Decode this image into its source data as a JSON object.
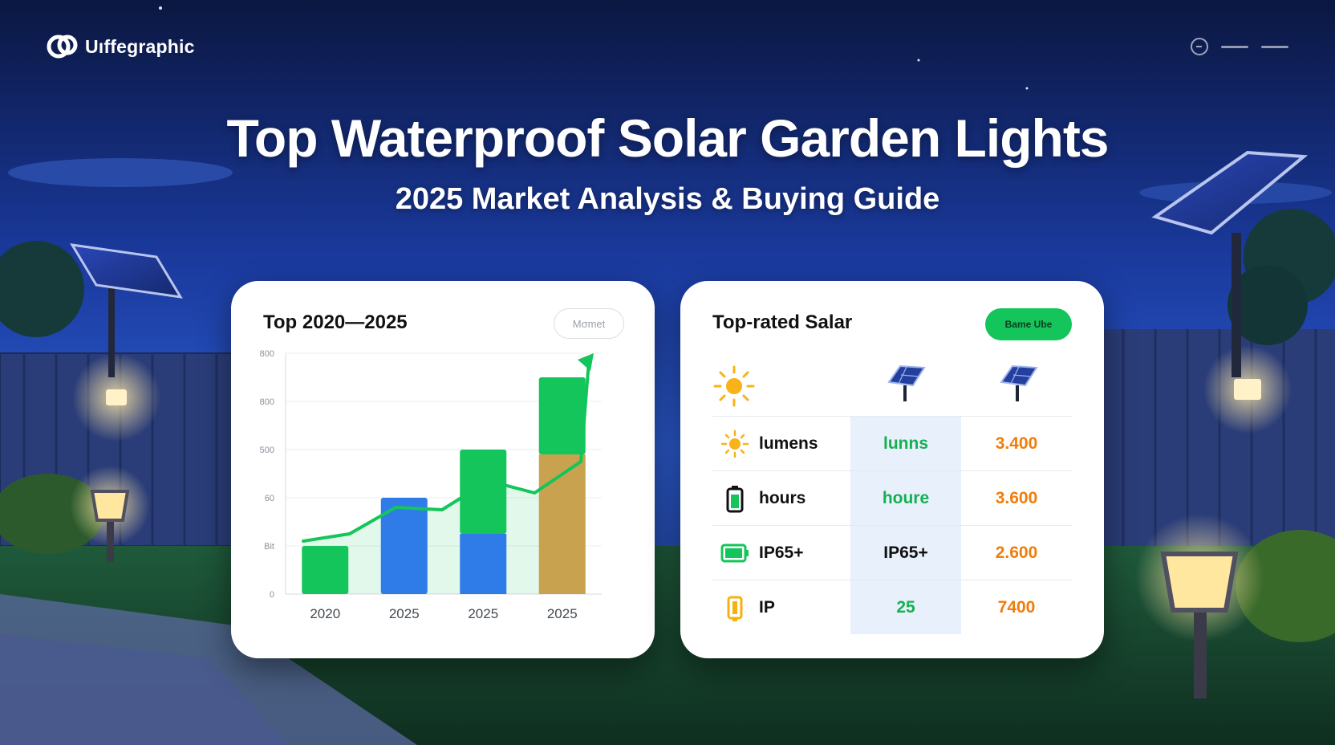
{
  "brand": {
    "name": "Uıffegraphic"
  },
  "hero": {
    "title": "Top Waterproof Solar Garden Lights",
    "subtitle": "2025 Market Analysis & Buying Guide"
  },
  "colors": {
    "green": "#13c55a",
    "blue": "#2f7be8",
    "gold": "#c8a24e",
    "orange": "#f07d0a",
    "night_sky": "#1b3fa8"
  },
  "growth_card": {
    "title": "Top 2020—2025",
    "filter_label": "Mσmet"
  },
  "chart_data": {
    "type": "bar",
    "categories": [
      "2020",
      "2025",
      "2025",
      "2025"
    ],
    "y_tick_labels": [
      "0",
      "Bit",
      "60",
      "500",
      "800",
      "800"
    ],
    "series": [
      {
        "values": [
          2,
          4,
          6,
          9
        ]
      },
      {
        "values": [
          0,
          0,
          2.5,
          5.8
        ]
      }
    ],
    "trend_line": [
      2.2,
      2.5,
      3.6,
      3.5,
      4.7,
      4.2,
      5.5
    ],
    "ylim": [
      0,
      10
    ],
    "grid": true,
    "legend": "none"
  },
  "compare_card": {
    "title": "Top-rated Salar",
    "button_label": "Bame Ube",
    "header_icons": [
      "sun-icon",
      "solar-panel-icon",
      "solar-panel-icon"
    ],
    "rows": [
      {
        "icon": "sun-icon",
        "name": "lumens",
        "mid": "lunns",
        "right": "3.400"
      },
      {
        "icon": "battery-icon",
        "name": "hours",
        "mid": "houre",
        "right": "3.600"
      },
      {
        "icon": "battery-green-icon",
        "name": "IP65+",
        "mid": "IP65+",
        "right": "2.600"
      },
      {
        "icon": "battery-yellow-icon",
        "name": "IP",
        "mid": "25",
        "right": "7400"
      }
    ]
  }
}
